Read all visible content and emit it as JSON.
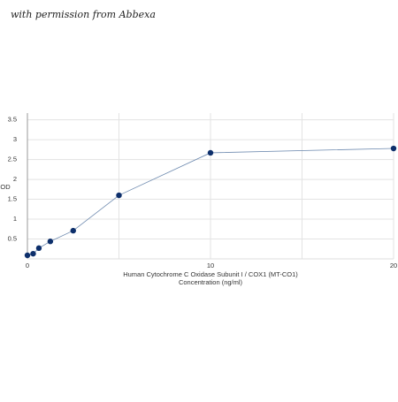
{
  "watermark": "with permission from Abbexa",
  "chart_data": {
    "type": "line",
    "x_label": "Human Cytochrome C Oxidase Subunit I / COX1 (MT-CO1)",
    "x_label_2": "Concentration (ng/ml)",
    "y_label": "OD",
    "x": [
      0,
      0.3125,
      0.625,
      1.25,
      2.5,
      5,
      10,
      20
    ],
    "series": [
      {
        "color": "#0d2f6b",
        "line_color": "#6f8bb0",
        "values": [
          0.09,
          0.13,
          0.27,
          0.44,
          0.71,
          1.6,
          2.67,
          2.78
        ]
      }
    ],
    "xlim": [
      0,
      20
    ],
    "xticks": [
      0,
      10,
      20
    ],
    "x_minor_grid": [
      5,
      15
    ],
    "ylim": [
      0,
      3.67
    ],
    "yticks": [
      0.5,
      1,
      1.5,
      2,
      2.5,
      3,
      3.5
    ],
    "grid": true
  }
}
